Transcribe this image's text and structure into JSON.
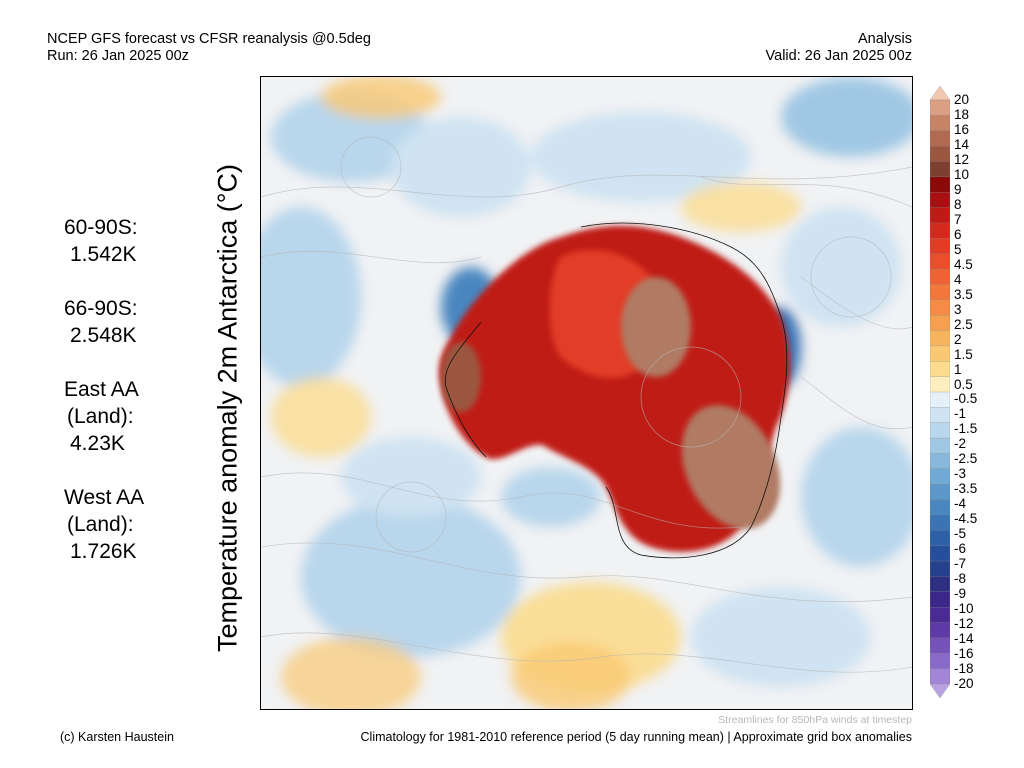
{
  "header": {
    "title": "NCEP GFS forecast vs CFSR reanalysis @0.5deg",
    "run": "Run: 26 Jan 2025 00z",
    "type": "Analysis",
    "valid": "Valid: 26 Jan 2025 00z"
  },
  "stats": [
    {
      "label": "60-90S:",
      "value": "1.542K"
    },
    {
      "label": "66-90S:",
      "value": "2.548K"
    },
    {
      "label": "East AA",
      "label2": "(Land):",
      "value": "4.23K"
    },
    {
      "label": "West AA",
      "label2": "(Land):",
      "value": "1.726K"
    }
  ],
  "map": {
    "title": "Temperature anomaly 2m Antarctica (°C)",
    "streamline_caption": "Streamlines for 850hPa winds at timestep"
  },
  "colorbar": {
    "ticks": [
      "20",
      "18",
      "16",
      "14",
      "12",
      "10",
      "9",
      "8",
      "7",
      "6",
      "5",
      "4.5",
      "4",
      "3.5",
      "3",
      "2.5",
      "2",
      "1.5",
      "1",
      "0.5",
      "-0.5",
      "-1",
      "-1.5",
      "-2",
      "-2.5",
      "-3",
      "-3.5",
      "-4",
      "-4.5",
      "-5",
      "-6",
      "-7",
      "-8",
      "-9",
      "-10",
      "-12",
      "-14",
      "-16",
      "-18",
      "-20"
    ],
    "colors": [
      "#f3c7b0",
      "#d9a084",
      "#c68465",
      "#b06a4f",
      "#9b5640",
      "#7d4030",
      "#8a0a0a",
      "#a80f10",
      "#c01a16",
      "#d42a1e",
      "#e23c25",
      "#ea4f2b",
      "#f06233",
      "#f3773a",
      "#f58b45",
      "#f6a04f",
      "#f7b45f",
      "#f9c872",
      "#fbdc8e",
      "#fdeec0",
      "#e5eff8",
      "#cfe3f2",
      "#b8d6ec",
      "#a0c8e4",
      "#88b9dc",
      "#70a9d3",
      "#5c98c9",
      "#4a86bf",
      "#3b73b4",
      "#2e60a8",
      "#274e9b",
      "#25408c",
      "#2d2f82",
      "#3a2787",
      "#4a2b95",
      "#5d3aa7",
      "#7452b8",
      "#8a6ac8",
      "#a285d6",
      "#baa2e2"
    ]
  },
  "footer": {
    "copyright": "(c) Karsten Haustein",
    "climatology": "Climatology for 1981-2010 reference period (5 day running mean) | Approximate grid box anomalies"
  }
}
